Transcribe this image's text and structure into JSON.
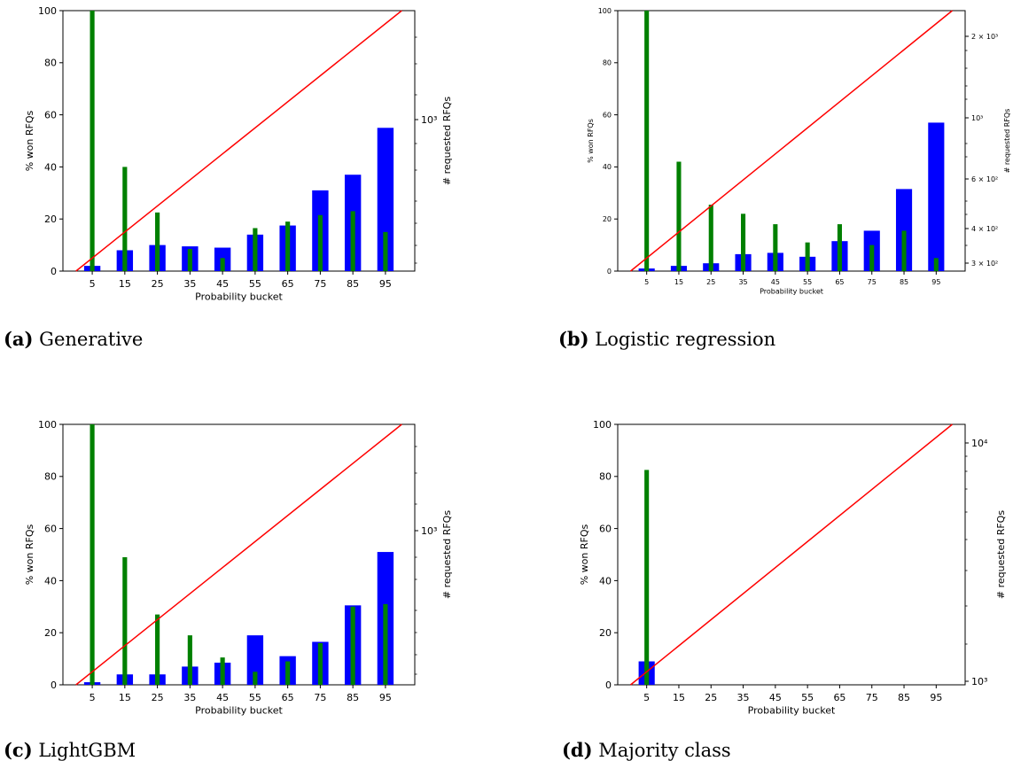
{
  "chart_data": [
    {
      "type": "bar",
      "caption_tag": "(a)",
      "caption_text": "Generative",
      "categories": [
        "5",
        "15",
        "25",
        "35",
        "45",
        "55",
        "65",
        "75",
        "85",
        "95"
      ],
      "xlabel": "Probability bucket",
      "ylabel": "% won RFQs",
      "y2label": "# requested RFQs",
      "ylim": [
        0,
        100
      ],
      "yticks": [
        "0",
        "20",
        "40",
        "60",
        "80",
        "100"
      ],
      "y2ticks": [
        "10³"
      ],
      "series": [
        {
          "values": [
            2,
            8,
            10,
            9.5,
            9,
            14,
            17.5,
            31,
            37,
            55
          ],
          "color": "#0000ff"
        },
        {
          "values": [
            100,
            40,
            22.5,
            8.5,
            5,
            16.5,
            19,
            21.5,
            23,
            15
          ],
          "color": "#008000"
        }
      ],
      "line_color": "#ff0000"
    },
    {
      "type": "bar",
      "caption_tag": "(b)",
      "caption_text": "Logistic regression",
      "categories": [
        "5",
        "15",
        "25",
        "35",
        "45",
        "55",
        "65",
        "75",
        "85",
        "95"
      ],
      "xlabel": "Probability bucket",
      "ylabel": "% won RFQs",
      "y2label": "# requested RFQs",
      "ylim": [
        0,
        100
      ],
      "yticks": [
        "0",
        "20",
        "40",
        "60",
        "80",
        "100"
      ],
      "y2ticks": [
        "2 × 10³",
        "10³",
        "6 × 10²",
        "4 × 10²",
        "3 × 10²"
      ],
      "series": [
        {
          "values": [
            1,
            2,
            3,
            6.5,
            7,
            5.5,
            11.5,
            15.5,
            31.5,
            57
          ],
          "color": "#0000ff"
        },
        {
          "values": [
            100,
            42,
            25.5,
            22,
            18,
            11,
            18,
            10,
            15.5,
            5
          ],
          "color": "#008000"
        }
      ],
      "line_color": "#ff0000"
    },
    {
      "type": "bar",
      "caption_tag": "(c)",
      "caption_text": "LightGBM",
      "categories": [
        "5",
        "15",
        "25",
        "35",
        "45",
        "55",
        "65",
        "75",
        "85",
        "95"
      ],
      "xlabel": "Probability bucket",
      "ylabel": "% won RFQs",
      "y2label": "# requested RFQs",
      "ylim": [
        0,
        100
      ],
      "yticks": [
        "0",
        "20",
        "40",
        "60",
        "80",
        "100"
      ],
      "y2ticks": [
        "10³"
      ],
      "series": [
        {
          "values": [
            1,
            4,
            4,
            7,
            8.5,
            19,
            11,
            16.5,
            30.5,
            51
          ],
          "color": "#0000ff"
        },
        {
          "values": [
            100,
            49,
            27,
            19,
            10.5,
            5,
            9,
            16,
            30,
            31
          ],
          "color": "#008000"
        }
      ],
      "line_color": "#ff0000"
    },
    {
      "type": "bar",
      "caption_tag": "(d)",
      "caption_text": "Majority class",
      "categories": [
        "5",
        "15",
        "25",
        "35",
        "45",
        "55",
        "65",
        "75",
        "85",
        "95"
      ],
      "xlabel": "Probability bucket",
      "ylabel": "% won RFQs",
      "y2label": "# requested RFQs",
      "ylim": [
        0,
        100
      ],
      "yticks": [
        "0",
        "20",
        "40",
        "60",
        "80",
        "100"
      ],
      "y2ticks": [
        "10⁴",
        "10³"
      ],
      "series": [
        {
          "values": [
            9,
            null,
            null,
            null,
            null,
            null,
            null,
            null,
            null,
            null
          ],
          "color": "#0000ff"
        },
        {
          "values": [
            82.5,
            null,
            null,
            null,
            null,
            null,
            null,
            null,
            null,
            null
          ],
          "color": "#008000"
        }
      ],
      "line_color": "#ff0000"
    }
  ]
}
